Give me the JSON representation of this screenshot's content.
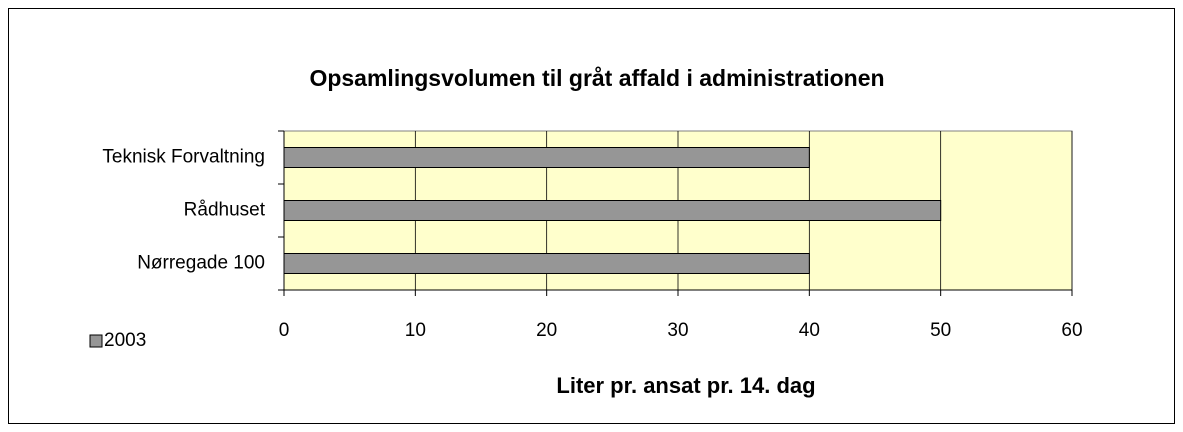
{
  "chart_data": {
    "type": "barh",
    "title": "Opsamlingsvolumen til gråt affald i administrationen",
    "xlabel": "Liter pr. ansat pr. 14. dag",
    "categories": [
      "Teknisk Forvaltning",
      "Rådhuset",
      "Nørregade 100"
    ],
    "series": [
      {
        "name": "2003",
        "color": "#969696",
        "values": [
          40,
          50,
          40
        ]
      }
    ],
    "xlim": [
      0,
      60
    ],
    "xticks": [
      0,
      10,
      20,
      30,
      40,
      50,
      60
    ],
    "grid": true,
    "legend": "bottom-left",
    "plot_background": "#ffffcc"
  }
}
